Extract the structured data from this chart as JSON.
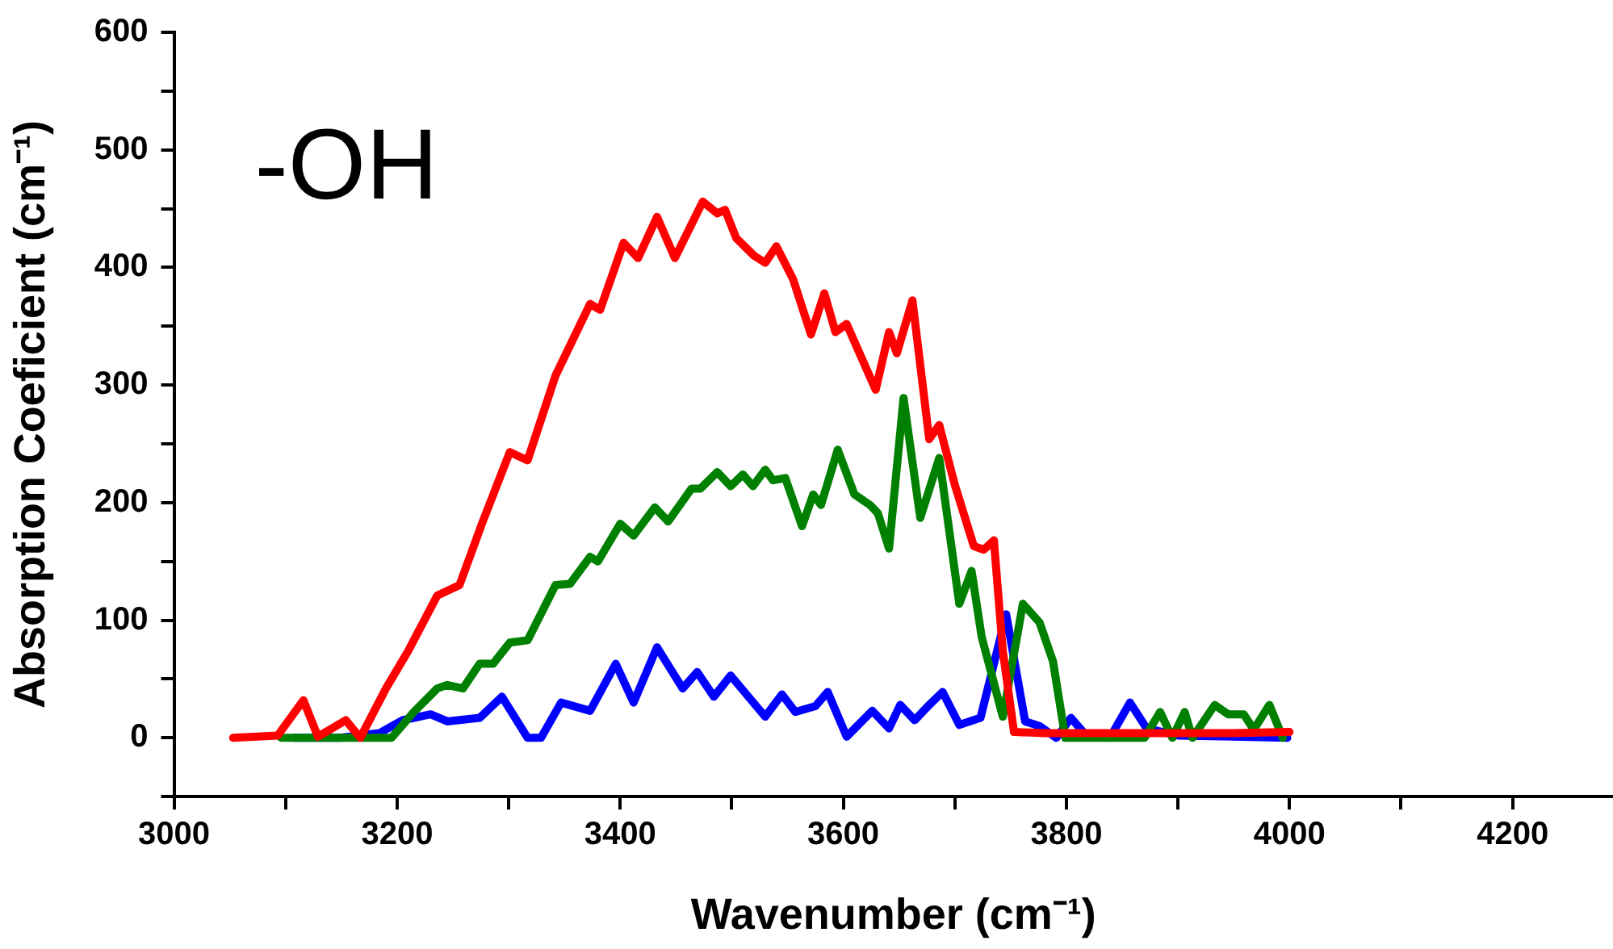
{
  "chart_data": {
    "type": "line",
    "xlabel": "Wavenumber (cm⁻¹)",
    "ylabel": "Absorption Coeficient (cm⁻¹)",
    "annotations": [
      "-OH"
    ],
    "xlim": [
      3000,
      4290
    ],
    "xticks": [
      3000,
      {
        "value": 3100,
        "label": null
      },
      3200,
      {
        "value": 3300,
        "label": null
      },
      3400,
      {
        "value": 3500,
        "label": null
      },
      3600,
      {
        "value": 3700,
        "label": null
      },
      3800,
      {
        "value": 3900,
        "label": null
      },
      4000,
      {
        "value": 4100,
        "label": null
      },
      4200
    ],
    "ylim": [
      -50,
      600
    ],
    "yticks": [
      {
        "value": -50,
        "label": null
      },
      0,
      {
        "value": 50,
        "label": null
      },
      100,
      {
        "value": 150,
        "label": null
      },
      200,
      {
        "value": 250,
        "label": null
      },
      300,
      {
        "value": 350,
        "label": null
      },
      400,
      {
        "value": 450,
        "label": null
      },
      500,
      {
        "value": 550,
        "label": null
      },
      600
    ],
    "grid": false,
    "legend": false,
    "marker": "none",
    "line_style": "solid",
    "series": [
      {
        "color": "#ff0000",
        "x": [
          3053,
          3093,
          3116,
          3129,
          3154,
          3167,
          3190,
          3210,
          3236,
          3256,
          3276,
          3301,
          3317,
          3342,
          3373,
          3382,
          3403,
          3416,
          3433,
          3449,
          3474,
          3487,
          3494,
          3504,
          3520,
          3530,
          3540,
          3555,
          3571,
          3583,
          3593,
          3603,
          3616,
          3629,
          3641,
          3648,
          3662,
          3677,
          3686,
          3700,
          3717,
          3726,
          3735,
          3743,
          3753,
          3780,
          3850,
          3950,
          4000
        ],
        "values": [
          0,
          2,
          32,
          1,
          15,
          0,
          42,
          74,
          121,
          130,
          182,
          243,
          236,
          308,
          369,
          364,
          421,
          408,
          443,
          408,
          456,
          446,
          449,
          425,
          410,
          404,
          418,
          390,
          343,
          378,
          345,
          352,
          324,
          296,
          345,
          327,
          372,
          254,
          266,
          215,
          163,
          160,
          168,
          74,
          5,
          4,
          4,
          4,
          5
        ]
      },
      {
        "color": "#008000",
        "x": [
          3096,
          3195,
          3215,
          3236,
          3245,
          3259,
          3274,
          3286,
          3301,
          3317,
          3342,
          3355,
          3373,
          3380,
          3400,
          3412,
          3431,
          3443,
          3464,
          3472,
          3487,
          3499,
          3510,
          3519,
          3530,
          3537,
          3548,
          3563,
          3573,
          3580,
          3595,
          3610,
          3624,
          3631,
          3641,
          3654,
          3669,
          3686,
          3704,
          3715,
          3724,
          3743,
          3761,
          3776,
          3788,
          3799,
          3870,
          3884,
          3895,
          3906,
          3913,
          3933,
          3945,
          3959,
          3968,
          3982,
          3994
        ],
        "values": [
          0,
          0,
          22,
          42,
          45,
          42,
          63,
          63,
          81,
          83,
          130,
          131,
          154,
          150,
          182,
          172,
          196,
          184,
          212,
          212,
          226,
          214,
          224,
          214,
          228,
          219,
          221,
          180,
          207,
          198,
          245,
          207,
          198,
          191,
          161,
          289,
          187,
          238,
          114,
          142,
          86,
          18,
          114,
          98,
          65,
          0,
          0,
          22,
          0,
          22,
          0,
          28,
          20,
          20,
          7,
          28,
          0
        ]
      },
      {
        "color": "#0000ff",
        "x": [
          3108,
          3149,
          3184,
          3205,
          3230,
          3245,
          3274,
          3294,
          3317,
          3329,
          3347,
          3373,
          3396,
          3412,
          3433,
          3456,
          3469,
          3484,
          3499,
          3530,
          3545,
          3557,
          3575,
          3586,
          3603,
          3626,
          3641,
          3651,
          3664,
          3677,
          3689,
          3704,
          3723,
          3746,
          3763,
          3776,
          3791,
          3804,
          3816,
          3839,
          3857,
          3872,
          3900,
          3998
        ],
        "values": [
          0,
          0,
          4,
          15,
          20,
          14,
          17,
          35,
          0,
          0,
          30,
          23,
          63,
          30,
          77,
          42,
          56,
          35,
          53,
          18,
          37,
          22,
          27,
          39,
          1,
          23,
          8,
          28,
          15,
          28,
          39,
          11,
          17,
          105,
          14,
          10,
          0,
          17,
          4,
          0,
          30,
          8,
          2,
          0
        ]
      }
    ]
  }
}
